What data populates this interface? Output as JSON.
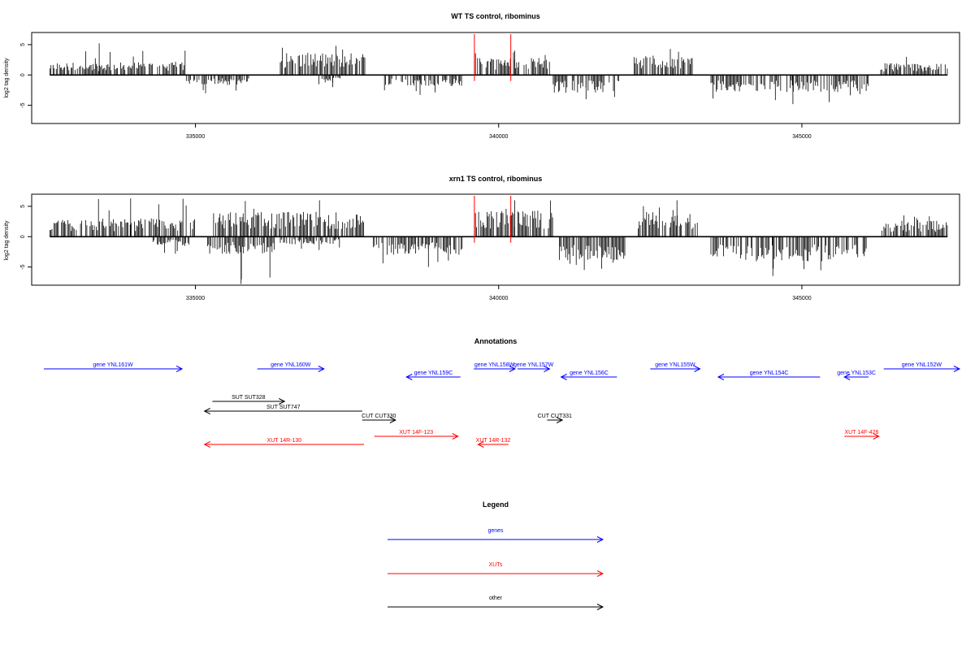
{
  "chart_data": [
    {
      "type": "bar",
      "title": "WT TS control, ribominus",
      "ylabel": "log2 tag density",
      "xlim": [
        332300,
        347600
      ],
      "ylim": [
        -8,
        7
      ],
      "x_ticks": [
        335000,
        340000,
        345000
      ],
      "x_tick_labels": [
        "335000",
        "340000",
        "345000"
      ],
      "y_ticks": [
        -5,
        0,
        5
      ],
      "y_tick_labels": [
        "-5",
        "0",
        "5"
      ],
      "highlight_x": [
        339600,
        340200
      ],
      "regions": [
        {
          "from": 332600,
          "to": 334850,
          "strand": "+",
          "typical": 1.6,
          "max": 5.2
        },
        {
          "from": 334850,
          "to": 335900,
          "strand": "-",
          "typical": -1.3,
          "max": -3.0
        },
        {
          "from": 336400,
          "to": 337800,
          "strand": "+",
          "typical": 2.8,
          "max": 4.8
        },
        {
          "from": 337000,
          "to": 337400,
          "strand": "-",
          "typical": -1.0,
          "max": -2.0
        },
        {
          "from": 338100,
          "to": 339400,
          "strand": "-",
          "typical": -1.4,
          "max": -3.3
        },
        {
          "from": 339600,
          "to": 340850,
          "strand": "+",
          "typical": 2.2,
          "max": 4.0
        },
        {
          "from": 340900,
          "to": 342000,
          "strand": "-",
          "typical": -2.3,
          "max": -4.0
        },
        {
          "from": 342200,
          "to": 343200,
          "strand": "+",
          "typical": 2.5,
          "max": 4.3
        },
        {
          "from": 343500,
          "to": 346100,
          "strand": "-",
          "typical": -2.2,
          "max": -4.8
        },
        {
          "from": 346300,
          "to": 347400,
          "strand": "+",
          "typical": 1.5,
          "max": 3.0
        }
      ]
    },
    {
      "type": "bar",
      "title": "xrn1 TS control, ribominus",
      "ylabel": "log2 tag density",
      "xlim": [
        332300,
        347600
      ],
      "ylim": [
        -8,
        7
      ],
      "x_ticks": [
        335000,
        340000,
        345000
      ],
      "x_tick_labels": [
        "335000",
        "340000",
        "345000"
      ],
      "y_ticks": [
        -5,
        0,
        5
      ],
      "y_tick_labels": [
        "-5",
        "0",
        "5"
      ],
      "highlight_x": [
        339600,
        340200
      ],
      "regions": [
        {
          "from": 332600,
          "to": 335000,
          "strand": "+",
          "typical": 2.3,
          "max": 6.3
        },
        {
          "from": 334300,
          "to": 334900,
          "strand": "-",
          "typical": -1.2,
          "max": -2.8
        },
        {
          "from": 335200,
          "to": 336300,
          "strand": "-",
          "typical": -2.2,
          "max": -7.8
        },
        {
          "from": 335300,
          "to": 337800,
          "strand": "+",
          "typical": 3.2,
          "max": 6.0
        },
        {
          "from": 336400,
          "to": 337400,
          "strand": "-",
          "typical": -1.0,
          "max": -2.2
        },
        {
          "from": 337900,
          "to": 339400,
          "strand": "-",
          "typical": -2.3,
          "max": -5.0
        },
        {
          "from": 339600,
          "to": 340900,
          "strand": "+",
          "typical": 3.3,
          "max": 6.0
        },
        {
          "from": 341000,
          "to": 342100,
          "strand": "-",
          "typical": -3.0,
          "max": -5.5
        },
        {
          "from": 342300,
          "to": 343300,
          "strand": "+",
          "typical": 3.2,
          "max": 6.0
        },
        {
          "from": 343500,
          "to": 346100,
          "strand": "-",
          "typical": -3.2,
          "max": -6.5
        },
        {
          "from": 346300,
          "to": 347400,
          "strand": "+",
          "typical": 2.0,
          "max": 3.5
        }
      ]
    }
  ],
  "annotations": {
    "title": "Annotations",
    "features": [
      {
        "label": "gene YNL161W",
        "category": "genes",
        "start": 332500,
        "end": 334780,
        "dir": "right",
        "row": 0
      },
      {
        "label": "gene YNL160W",
        "category": "genes",
        "start": 336020,
        "end": 337120,
        "dir": "right",
        "row": 0
      },
      {
        "label": "gene YNL159C",
        "category": "genes",
        "start": 338480,
        "end": 339370,
        "dir": "left",
        "row": 1
      },
      {
        "label": "gene YNL158W",
        "category": "genes",
        "start": 339590,
        "end": 340270,
        "dir": "right",
        "row": 0
      },
      {
        "label": "gene YNL157W",
        "category": "genes",
        "start": 340310,
        "end": 340840,
        "dir": "right",
        "row": 0
      },
      {
        "label": "gene YNL156C",
        "category": "genes",
        "start": 341030,
        "end": 341950,
        "dir": "left",
        "row": 1
      },
      {
        "label": "gene YNL155W",
        "category": "genes",
        "start": 342500,
        "end": 343320,
        "dir": "right",
        "row": 0
      },
      {
        "label": "gene YNL154C",
        "category": "genes",
        "start": 343620,
        "end": 345300,
        "dir": "left",
        "row": 1
      },
      {
        "label": "gene YNL153C",
        "category": "genes",
        "start": 345700,
        "end": 346100,
        "dir": "left",
        "row": 1
      },
      {
        "label": "gene YNL152W",
        "category": "genes",
        "start": 346350,
        "end": 347600,
        "dir": "right",
        "row": 0
      },
      {
        "label": "SUT SUT328",
        "category": "other",
        "start": 335280,
        "end": 336470,
        "dir": "right",
        "row": 2
      },
      {
        "label": "SUT SUT747",
        "category": "other",
        "start": 335150,
        "end": 337750,
        "dir": "left",
        "row": 3
      },
      {
        "label": "CUT CUT330",
        "category": "other",
        "start": 337750,
        "end": 338300,
        "dir": "right",
        "row": 4
      },
      {
        "label": "CUT CUT331",
        "category": "other",
        "start": 340800,
        "end": 341050,
        "dir": "right",
        "row": 4
      },
      {
        "label": "XUT 14R-130",
        "category": "XUTs",
        "start": 335150,
        "end": 337780,
        "dir": "left",
        "row": 6
      },
      {
        "label": "XUT 14F-123",
        "category": "XUTs",
        "start": 337950,
        "end": 339330,
        "dir": "right",
        "row": 5
      },
      {
        "label": "XUT 14R-132",
        "category": "XUTs",
        "start": 339660,
        "end": 340160,
        "dir": "left",
        "row": 6
      },
      {
        "label": "XUT 14F-426",
        "category": "XUTs",
        "start": 345700,
        "end": 346270,
        "dir": "right",
        "row": 5
      }
    ]
  },
  "legend": {
    "title": "Legend",
    "items": [
      {
        "label": "genes",
        "color": "#0000ff"
      },
      {
        "label": "XUTs",
        "color": "#ff0000"
      },
      {
        "label": "other",
        "color": "#000000"
      }
    ]
  },
  "colors": {
    "genes": "#0000ff",
    "XUTs": "#ff0000",
    "other": "#000000",
    "highlight": "#ff0000",
    "bars": "#000000"
  }
}
